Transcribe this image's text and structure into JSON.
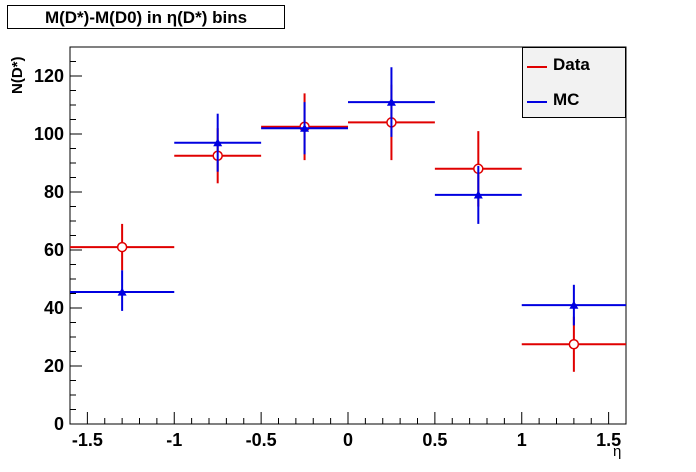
{
  "chart_data": {
    "type": "scatter",
    "title": "M(D*)-M(D0) in η(D*) bins",
    "xlabel": "η",
    "ylabel": "N(D*)",
    "xlim": [
      -1.6,
      1.6
    ],
    "ylim": [
      0,
      130
    ],
    "x_ticks": [
      "-1.5",
      "-1",
      "-0.5",
      "0",
      "0.5",
      "1",
      "1.5"
    ],
    "y_ticks": [
      "0",
      "20",
      "40",
      "60",
      "80",
      "100",
      "120"
    ],
    "legend": "top-right",
    "series": [
      {
        "name": "Data",
        "color": "#e00000",
        "marker": "open-circle",
        "points": [
          {
            "x": -1.3,
            "xlo": -1.6,
            "xhi": -1.0,
            "y": 61,
            "ylo": 53,
            "yhi": 69
          },
          {
            "x": -0.75,
            "xlo": -1.0,
            "xhi": -0.5,
            "y": 92.5,
            "ylo": 83,
            "yhi": 102
          },
          {
            "x": -0.25,
            "xlo": -0.5,
            "xhi": 0.0,
            "y": 102.5,
            "ylo": 91,
            "yhi": 114
          },
          {
            "x": 0.25,
            "xlo": 0.0,
            "xhi": 0.5,
            "y": 104,
            "ylo": 91,
            "yhi": 117
          },
          {
            "x": 0.75,
            "xlo": 0.5,
            "xhi": 1.0,
            "y": 88,
            "ylo": 75,
            "yhi": 101
          },
          {
            "x": 1.3,
            "xlo": 1.0,
            "xhi": 1.6,
            "y": 27.5,
            "ylo": 18,
            "yhi": 37
          }
        ]
      },
      {
        "name": "MC",
        "color": "#0000e0",
        "marker": "triangle",
        "points": [
          {
            "x": -1.3,
            "xlo": -1.6,
            "xhi": -1.0,
            "y": 45.5,
            "ylo": 39,
            "yhi": 53
          },
          {
            "x": -0.75,
            "xlo": -1.0,
            "xhi": -0.5,
            "y": 97,
            "ylo": 87,
            "yhi": 107
          },
          {
            "x": -0.25,
            "xlo": -0.5,
            "xhi": 0.0,
            "y": 102,
            "ylo": 93,
            "yhi": 111
          },
          {
            "x": 0.25,
            "xlo": 0.0,
            "xhi": 0.5,
            "y": 111,
            "ylo": 99,
            "yhi": 123
          },
          {
            "x": 0.75,
            "xlo": 0.5,
            "xhi": 1.0,
            "y": 79,
            "ylo": 69,
            "yhi": 89
          },
          {
            "x": 1.3,
            "xlo": 1.0,
            "xhi": 1.6,
            "y": 41,
            "ylo": 34,
            "yhi": 48
          }
        ]
      }
    ]
  }
}
